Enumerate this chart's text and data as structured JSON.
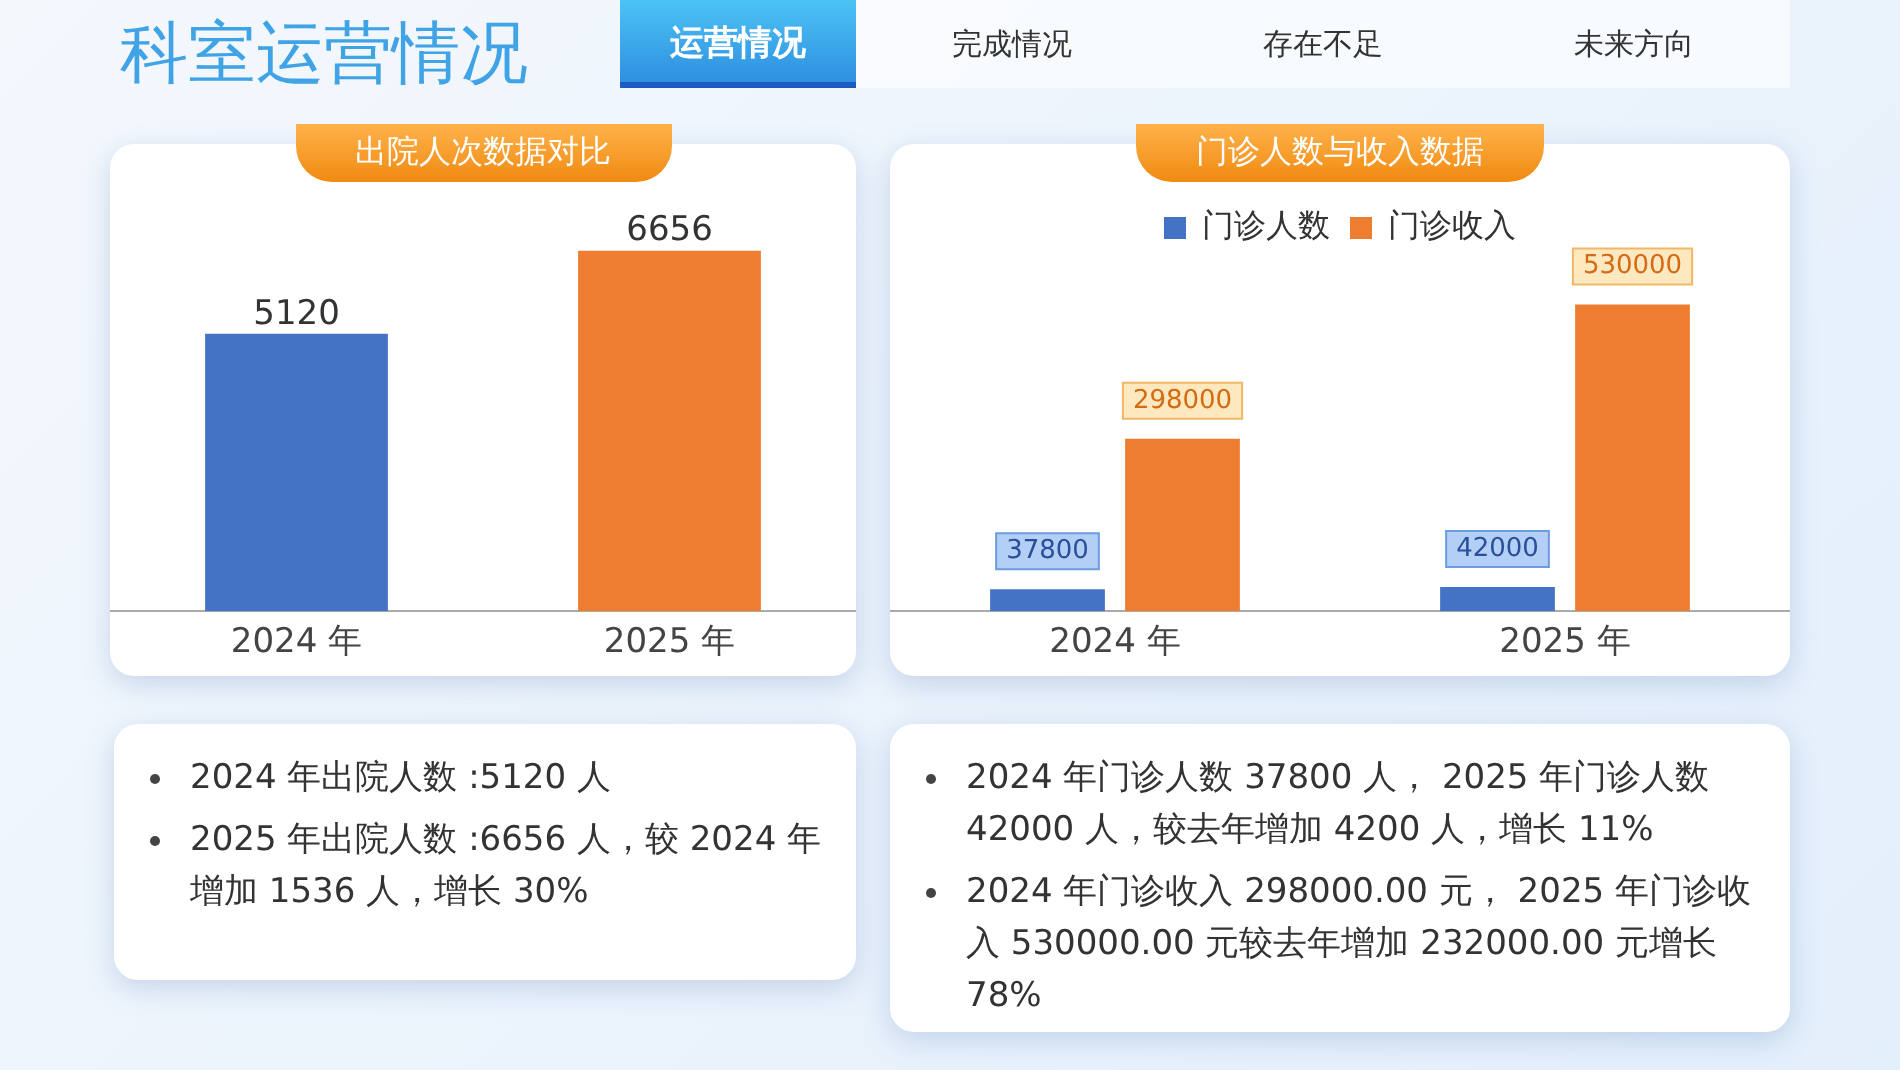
{
  "chart_data": [
    {
      "type": "other",
      "title": "科室运营情况",
      "annotations": [
        "运营情况",
        "完成情况",
        "存在不足",
        "未来方向"
      ]
    },
    {
      "type": "bar",
      "title": "出院人次数据对比",
      "categories": [
        "2024 年",
        "2025 年"
      ],
      "values": [
        5120,
        6656
      ],
      "colors": [
        "#4472c4",
        "#ed7d31"
      ],
      "data_labels": true,
      "grid": false,
      "legend": false,
      "tick_labels": "x"
    },
    {
      "type": "bar",
      "title": "门诊人数与收入数据",
      "categories": [
        "2024 年",
        "2025 年"
      ],
      "series": [
        {
          "name": "门诊人数",
          "color": "#4472c4",
          "values": [
            37800,
            42000
          ]
        },
        {
          "name": "门诊收入",
          "color": "#ed7d31",
          "values": [
            298000,
            530000
          ]
        }
      ],
      "data_labels": true,
      "grid": false,
      "legend": "top",
      "tick_labels": "x"
    },
    {
      "type": "other",
      "annotations": [
        "2024  年出院人数 :5120 人",
        "2025  年出院人数 :6656 人，较 2024 年增加  1536  人，增长  30%"
      ]
    },
    {
      "type": "other",
      "annotations": [
        "2024  年门诊人数  37800 人， 2025 年门诊人数 42000 人，较去年增加  4200 人，增长 11%",
        "2024 年门诊收入 298000.00 元， 2025 年门诊收入 530000.00 元较去年增加  232000.00  元增长 78%"
      ]
    }
  ]
}
